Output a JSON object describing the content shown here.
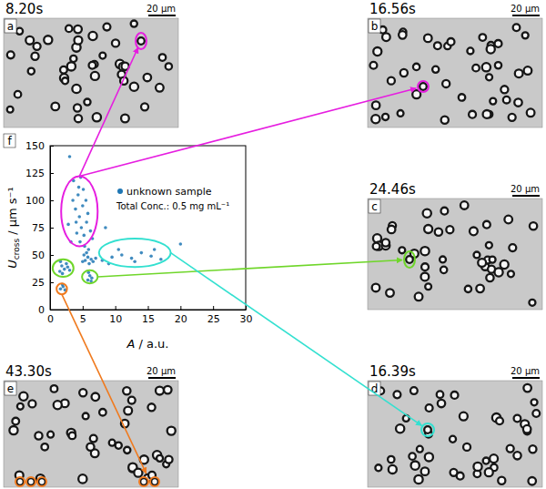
{
  "panels": [
    {
      "letter": "a",
      "time": "8.20s",
      "scale": "20 µm"
    },
    {
      "letter": "b",
      "time": "16.56s",
      "scale": "20 µm"
    },
    {
      "letter": "c",
      "time": "24.46s",
      "scale": "20 µm"
    },
    {
      "letter": "d",
      "time": "16.39s",
      "scale": "20 µm"
    },
    {
      "letter": "e",
      "time": "43.30s",
      "scale": "20 µm"
    }
  ],
  "chart_data": {
    "type": "scatter",
    "panel": "f",
    "x_label": {
      "symbol": "A",
      "unit": "/ a.u."
    },
    "y_label": {
      "symbol": "U",
      "subscript": "cross",
      "unit": "/ µm s⁻¹"
    },
    "annotation": "Total Conc.: 0.5 mg mL⁻¹",
    "xlim": [
      0,
      30
    ],
    "xticks": [
      0,
      5,
      10,
      15,
      20,
      25,
      30
    ],
    "ylim": [
      0,
      150
    ],
    "yticks": [
      0,
      25,
      50,
      75,
      100,
      125,
      150
    ],
    "grid": false,
    "legend": "right",
    "series": [
      {
        "name": "unknown sample",
        "color": "#1f77b4",
        "marker": "circle",
        "x": [
          3.2,
          4.1,
          4.8,
          5.2,
          5.6,
          4.5,
          3.9,
          5.0,
          5.8,
          4.3,
          5.1,
          3.6,
          4.7,
          2.8,
          6.2,
          5.5,
          4.0,
          6.5,
          3.5,
          5.3,
          4.6,
          4.4,
          5.4,
          5.8,
          6.0,
          5.2,
          6.3,
          5.6,
          6.6,
          5.0,
          7.0,
          5.9,
          1.5,
          1.8,
          2.2,
          2.5,
          1.9,
          2.7,
          3.0,
          1.6,
          5.8,
          6.1,
          6.4,
          5.9,
          6.3,
          1.6,
          2.0,
          2.3,
          1.9,
          8.0,
          9.5,
          11.0,
          12.5,
          14.0,
          15.5,
          17.0,
          10.5,
          13.0,
          16.0,
          9.0,
          8.5,
          20.0,
          3.0
        ],
        "values": [
          62,
          70,
          75,
          68,
          80,
          85,
          92,
          95,
          88,
          105,
          110,
          118,
          121,
          78,
          72,
          100,
          80,
          65,
          100,
          58,
          62,
          112,
          45,
          48,
          42,
          50,
          46,
          52,
          44,
          44,
          47,
          55,
          35,
          40,
          37,
          42,
          33,
          39,
          36,
          44,
          27,
          31,
          29,
          34,
          26,
          19,
          21,
          18,
          23,
          45,
          48,
          50,
          47,
          52,
          49,
          46,
          55,
          44,
          55,
          42,
          75,
          60,
          140
        ]
      }
    ],
    "regions": [
      {
        "color": "#e61ee0",
        "x": 4.5,
        "y": 90,
        "rx": 2.8,
        "ry": 32,
        "panels": [
          0,
          1
        ]
      },
      {
        "color": "#6fd62a",
        "x": 2.0,
        "y": 38,
        "rx": 1.6,
        "ry": 8
      },
      {
        "color": "#6fd62a",
        "x": 6.1,
        "y": 30,
        "rx": 1.2,
        "ry": 6,
        "panels": [
          2
        ]
      },
      {
        "color": "#33e0d0",
        "x": 13.0,
        "y": 52,
        "rx": 5.5,
        "ry": 13,
        "panels": [
          3
        ]
      },
      {
        "color": "#f07a1e",
        "x": 1.8,
        "y": 19,
        "rx": 0.8,
        "ry": 5,
        "panels": [
          4
        ]
      }
    ]
  }
}
